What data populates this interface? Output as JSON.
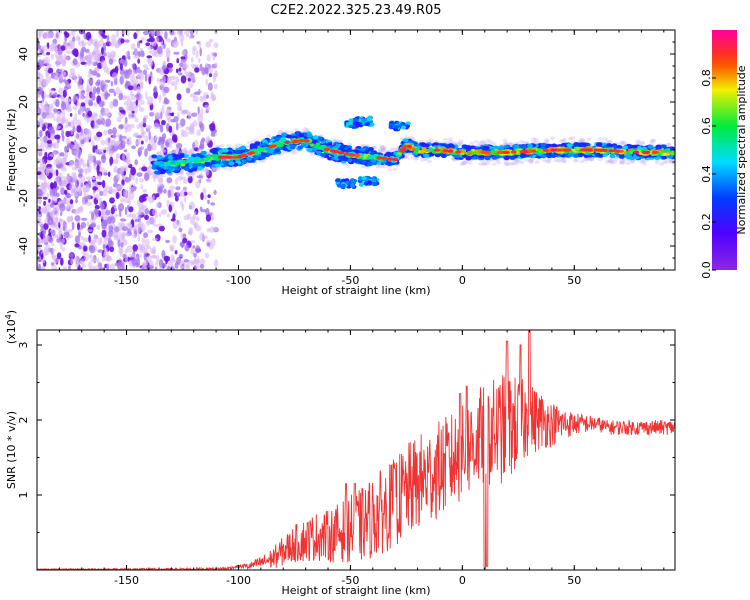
{
  "title": "C2E2.2022.325.23.49.R05",
  "chart_data": [
    {
      "type": "heatmap",
      "name": "spectrogram",
      "xlabel": "Height of straight line (km)",
      "ylabel": "Frequency (Hz)",
      "xlim": [
        -190,
        95
      ],
      "ylim": [
        -50,
        50
      ],
      "xticks": [
        -150,
        -100,
        -50,
        0,
        50
      ],
      "yticks": [
        -40,
        -20,
        0,
        20,
        40
      ],
      "noise_region_x": [
        -190,
        -110
      ],
      "ridge": [
        {
          "x": -135,
          "y": -6
        },
        {
          "x": -120,
          "y": -5
        },
        {
          "x": -110,
          "y": -3
        },
        {
          "x": -100,
          "y": -3
        },
        {
          "x": -90,
          "y": 0
        },
        {
          "x": -80,
          "y": 3
        },
        {
          "x": -70,
          "y": 4
        },
        {
          "x": -60,
          "y": 0
        },
        {
          "x": -50,
          "y": -2
        },
        {
          "x": -40,
          "y": -3
        },
        {
          "x": -30,
          "y": -4
        },
        {
          "x": -25,
          "y": 2
        },
        {
          "x": -20,
          "y": 0
        },
        {
          "x": -10,
          "y": 0
        },
        {
          "x": 0,
          "y": -1
        },
        {
          "x": 20,
          "y": -1
        },
        {
          "x": 40,
          "y": 0
        },
        {
          "x": 60,
          "y": 0
        },
        {
          "x": 80,
          "y": -1
        },
        {
          "x": 95,
          "y": -1
        }
      ],
      "side_branches": [
        {
          "x": -48,
          "y": 11
        },
        {
          "x": -44,
          "y": 12
        },
        {
          "x": -52,
          "y": -14
        },
        {
          "x": -42,
          "y": -13
        },
        {
          "x": -28,
          "y": 10
        }
      ],
      "colorbar": {
        "label": "Normalized spectral amplitude",
        "range": [
          0.0,
          1.0
        ],
        "ticks": [
          "0.0",
          "0.2",
          "0.4",
          "0.6",
          "0.8"
        ],
        "tick_values": [
          0.0,
          0.2,
          0.4,
          0.6,
          0.8
        ]
      }
    },
    {
      "type": "line",
      "name": "snr",
      "xlabel": "Height of straight line (km)",
      "ylabel": "SNR (10 * v/v)",
      "exponent_label": "(x10",
      "exponent_power": "4",
      "exponent_close": ")",
      "xlim": [
        -190,
        95
      ],
      "ylim": [
        0,
        3.2
      ],
      "xticks": [
        -150,
        -100,
        -50,
        0,
        50
      ],
      "yticks": [
        1,
        2,
        3
      ],
      "color": "#ee3333",
      "envelope": {
        "x": [
          -190,
          -120,
          -105,
          -100,
          -95,
          -90,
          -85,
          -80,
          -75,
          -70,
          -65,
          -60,
          -55,
          -50,
          -45,
          -40,
          -35,
          -30,
          -25,
          -20,
          -15,
          -10,
          -5,
          0,
          5,
          10,
          15,
          20,
          25,
          30,
          35,
          40,
          45,
          50,
          55,
          60,
          65,
          70,
          75,
          80,
          85,
          90,
          95
        ],
        "y": [
          0.01,
          0.01,
          0.02,
          0.05,
          0.05,
          0.1,
          0.15,
          0.25,
          0.35,
          0.4,
          0.45,
          0.45,
          0.5,
          0.55,
          0.6,
          0.7,
          0.8,
          0.9,
          1.05,
          1.15,
          1.25,
          1.35,
          1.45,
          1.55,
          1.7,
          1.8,
          1.85,
          1.9,
          1.95,
          2.0,
          2.0,
          1.95,
          1.95,
          1.95,
          1.95,
          1.95,
          1.9,
          1.9,
          1.9,
          1.9,
          1.9,
          1.9,
          1.9
        ]
      },
      "spread": {
        "x": [
          -190,
          -100,
          -90,
          -80,
          -70,
          -60,
          -50,
          -40,
          -30,
          -20,
          -10,
          0,
          10,
          20,
          30,
          40,
          50,
          60,
          95
        ],
        "y": [
          0.005,
          0.02,
          0.08,
          0.2,
          0.3,
          0.35,
          0.45,
          0.55,
          0.6,
          0.65,
          0.65,
          0.65,
          0.7,
          0.75,
          0.5,
          0.3,
          0.15,
          0.1,
          0.1
        ]
      },
      "peaks": [
        {
          "x": 20,
          "y": 3.05
        },
        {
          "x": 26,
          "y": 3.0
        },
        {
          "x": 30,
          "y": 3.2
        },
        {
          "x": 2,
          "y": 2.45
        },
        {
          "x": -1,
          "y": 2.35
        },
        {
          "x": -48,
          "y": 1.15
        },
        {
          "x": -52,
          "y": 1.15
        },
        {
          "x": -30,
          "y": 1.35
        },
        {
          "x": -8,
          "y": 1.55
        }
      ],
      "dips": [
        {
          "x": 10,
          "y": 0.02
        },
        {
          "x": 11,
          "y": 0.05
        }
      ]
    }
  ]
}
